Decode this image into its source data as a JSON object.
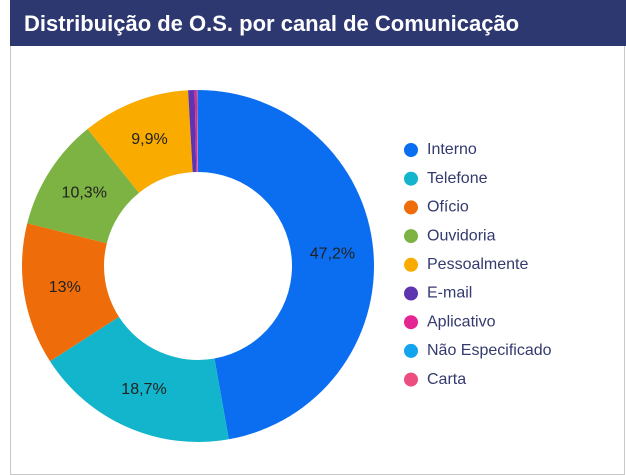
{
  "chart_data": {
    "type": "pie",
    "title": "Distribuição de O.S. por canal de Comunicação",
    "categories": [
      "Interno",
      "Telefone",
      "Ofício",
      "Ouvidoria",
      "Pessoalmente",
      "E-mail",
      "Aplicativo",
      "Não Especificado",
      "Carta"
    ],
    "values": [
      47.2,
      18.7,
      13,
      10.3,
      9.9,
      0.6,
      0.2,
      0.05,
      0.05
    ],
    "value_labels": [
      "47,2%",
      "18,7%",
      "13%",
      "10,3%",
      "9,9%",
      null,
      null,
      null,
      null
    ],
    "colors": [
      "#0b6ef0",
      "#12b5cb",
      "#ee6d0a",
      "#7cb342",
      "#f9ab00",
      "#5e35b1",
      "#e52592",
      "#12a4ed",
      "#ec4f7f"
    ],
    "donut": true,
    "legend": "right"
  }
}
